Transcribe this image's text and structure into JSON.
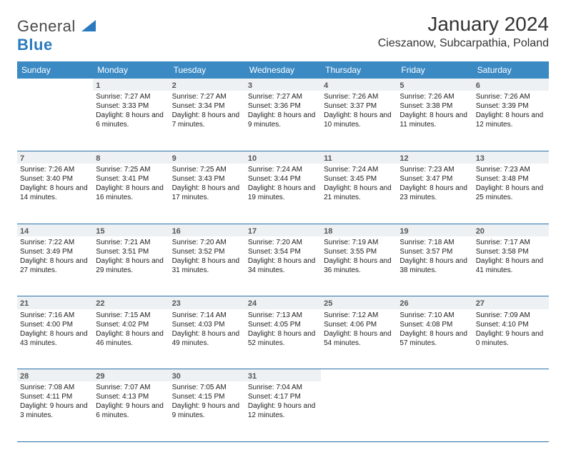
{
  "brand": {
    "name_a": "General",
    "name_b": "Blue"
  },
  "title": "January 2024",
  "location": "Cieszanow, Subcarpathia, Poland",
  "colors": {
    "header_bg": "#3b8ac4",
    "header_text": "#ffffff",
    "daynum_bg": "#eef1f3",
    "row_border": "#2a6fa8",
    "brand_blue": "#2a7abf",
    "text": "#222222"
  },
  "typography": {
    "title_fontsize": 28,
    "location_fontsize": 16,
    "header_fontsize": 12,
    "cell_fontsize": 10
  },
  "weekdays": [
    "Sunday",
    "Monday",
    "Tuesday",
    "Wednesday",
    "Thursday",
    "Friday",
    "Saturday"
  ],
  "weeks": [
    [
      null,
      {
        "d": "1",
        "sr": "7:27 AM",
        "ss": "3:33 PM",
        "dl": "8 hours and 6 minutes."
      },
      {
        "d": "2",
        "sr": "7:27 AM",
        "ss": "3:34 PM",
        "dl": "8 hours and 7 minutes."
      },
      {
        "d": "3",
        "sr": "7:27 AM",
        "ss": "3:36 PM",
        "dl": "8 hours and 9 minutes."
      },
      {
        "d": "4",
        "sr": "7:26 AM",
        "ss": "3:37 PM",
        "dl": "8 hours and 10 minutes."
      },
      {
        "d": "5",
        "sr": "7:26 AM",
        "ss": "3:38 PM",
        "dl": "8 hours and 11 minutes."
      },
      {
        "d": "6",
        "sr": "7:26 AM",
        "ss": "3:39 PM",
        "dl": "8 hours and 12 minutes."
      }
    ],
    [
      {
        "d": "7",
        "sr": "7:26 AM",
        "ss": "3:40 PM",
        "dl": "8 hours and 14 minutes."
      },
      {
        "d": "8",
        "sr": "7:25 AM",
        "ss": "3:41 PM",
        "dl": "8 hours and 16 minutes."
      },
      {
        "d": "9",
        "sr": "7:25 AM",
        "ss": "3:43 PM",
        "dl": "8 hours and 17 minutes."
      },
      {
        "d": "10",
        "sr": "7:24 AM",
        "ss": "3:44 PM",
        "dl": "8 hours and 19 minutes."
      },
      {
        "d": "11",
        "sr": "7:24 AM",
        "ss": "3:45 PM",
        "dl": "8 hours and 21 minutes."
      },
      {
        "d": "12",
        "sr": "7:23 AM",
        "ss": "3:47 PM",
        "dl": "8 hours and 23 minutes."
      },
      {
        "d": "13",
        "sr": "7:23 AM",
        "ss": "3:48 PM",
        "dl": "8 hours and 25 minutes."
      }
    ],
    [
      {
        "d": "14",
        "sr": "7:22 AM",
        "ss": "3:49 PM",
        "dl": "8 hours and 27 minutes."
      },
      {
        "d": "15",
        "sr": "7:21 AM",
        "ss": "3:51 PM",
        "dl": "8 hours and 29 minutes."
      },
      {
        "d": "16",
        "sr": "7:20 AM",
        "ss": "3:52 PM",
        "dl": "8 hours and 31 minutes."
      },
      {
        "d": "17",
        "sr": "7:20 AM",
        "ss": "3:54 PM",
        "dl": "8 hours and 34 minutes."
      },
      {
        "d": "18",
        "sr": "7:19 AM",
        "ss": "3:55 PM",
        "dl": "8 hours and 36 minutes."
      },
      {
        "d": "19",
        "sr": "7:18 AM",
        "ss": "3:57 PM",
        "dl": "8 hours and 38 minutes."
      },
      {
        "d": "20",
        "sr": "7:17 AM",
        "ss": "3:58 PM",
        "dl": "8 hours and 41 minutes."
      }
    ],
    [
      {
        "d": "21",
        "sr": "7:16 AM",
        "ss": "4:00 PM",
        "dl": "8 hours and 43 minutes."
      },
      {
        "d": "22",
        "sr": "7:15 AM",
        "ss": "4:02 PM",
        "dl": "8 hours and 46 minutes."
      },
      {
        "d": "23",
        "sr": "7:14 AM",
        "ss": "4:03 PM",
        "dl": "8 hours and 49 minutes."
      },
      {
        "d": "24",
        "sr": "7:13 AM",
        "ss": "4:05 PM",
        "dl": "8 hours and 52 minutes."
      },
      {
        "d": "25",
        "sr": "7:12 AM",
        "ss": "4:06 PM",
        "dl": "8 hours and 54 minutes."
      },
      {
        "d": "26",
        "sr": "7:10 AM",
        "ss": "4:08 PM",
        "dl": "8 hours and 57 minutes."
      },
      {
        "d": "27",
        "sr": "7:09 AM",
        "ss": "4:10 PM",
        "dl": "9 hours and 0 minutes."
      }
    ],
    [
      {
        "d": "28",
        "sr": "7:08 AM",
        "ss": "4:11 PM",
        "dl": "9 hours and 3 minutes."
      },
      {
        "d": "29",
        "sr": "7:07 AM",
        "ss": "4:13 PM",
        "dl": "9 hours and 6 minutes."
      },
      {
        "d": "30",
        "sr": "7:05 AM",
        "ss": "4:15 PM",
        "dl": "9 hours and 9 minutes."
      },
      {
        "d": "31",
        "sr": "7:04 AM",
        "ss": "4:17 PM",
        "dl": "9 hours and 12 minutes."
      },
      null,
      null,
      null
    ]
  ],
  "labels": {
    "sunrise": "Sunrise:",
    "sunset": "Sunset:",
    "daylight": "Daylight:"
  }
}
